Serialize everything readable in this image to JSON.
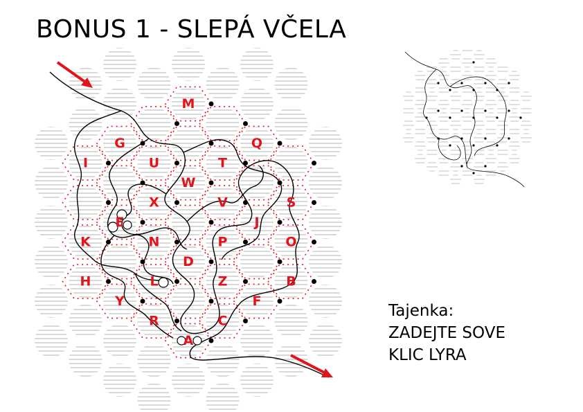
{
  "title": "BONUS 1 - SLEPÁ VČELA",
  "board": {
    "letters": [
      {
        "id": "M",
        "col": 0,
        "row": -4
      },
      {
        "id": "Q",
        "col": 2,
        "row": -3
      },
      {
        "id": "G",
        "col": -2,
        "row": -3
      },
      {
        "id": "U",
        "col": -1,
        "row": -2.5
      },
      {
        "id": "T",
        "col": 1,
        "row": -2.5
      },
      {
        "id": "I",
        "col": -3,
        "row": -2.5
      },
      {
        "id": "W",
        "col": 0,
        "row": -2
      },
      {
        "id": "X",
        "col": -1,
        "row": -1.5
      },
      {
        "id": "V",
        "col": 1,
        "row": -1.5
      },
      {
        "id": "S",
        "col": 3,
        "row": -1.5
      },
      {
        "id": "E",
        "col": -2,
        "row": -1
      },
      {
        "id": "J",
        "col": 2,
        "row": -1
      },
      {
        "id": "K",
        "col": -3,
        "row": -0.5
      },
      {
        "id": "N",
        "col": -1,
        "row": -0.5
      },
      {
        "id": "P",
        "col": 1,
        "row": -0.5
      },
      {
        "id": "O",
        "col": 3,
        "row": -0.5
      },
      {
        "id": "D",
        "col": 0,
        "row": 0
      },
      {
        "id": "H",
        "col": -3,
        "row": 0.5
      },
      {
        "id": "L",
        "col": -1,
        "row": 0.5
      },
      {
        "id": "Z",
        "col": 1,
        "row": 0.5
      },
      {
        "id": "B",
        "col": 3,
        "row": 0.5
      },
      {
        "id": "Y",
        "col": -2,
        "row": 1
      },
      {
        "id": "F",
        "col": 2,
        "row": 1
      },
      {
        "id": "R",
        "col": -1,
        "row": 1.5
      },
      {
        "id": "C",
        "col": 1,
        "row": 1.5
      },
      {
        "id": "A",
        "col": 0,
        "row": 2
      }
    ]
  },
  "solution": {
    "label": "Tajenka:",
    "line1": "ZADEJTE SOVE",
    "line2": "KLIC LYRA"
  },
  "colors": {
    "accent": "#e0141b",
    "ink": "#000000",
    "hatch": "#d6d6d6"
  },
  "icons": [
    "start-arrow-icon",
    "end-arrow-icon"
  ]
}
